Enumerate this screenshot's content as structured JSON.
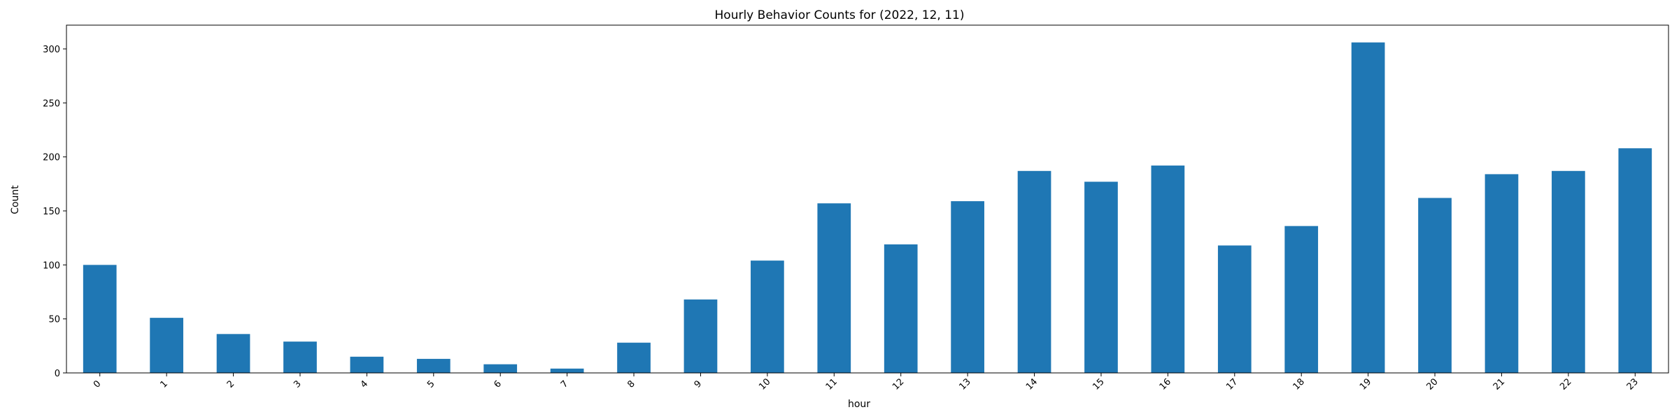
{
  "chart_data": {
    "type": "bar",
    "title": "Hourly Behavior Counts for (2022, 12, 11)",
    "xlabel": "hour",
    "ylabel": "Count",
    "categories": [
      "0",
      "1",
      "2",
      "3",
      "4",
      "5",
      "6",
      "7",
      "8",
      "9",
      "10",
      "11",
      "12",
      "13",
      "14",
      "15",
      "16",
      "17",
      "18",
      "19",
      "20",
      "21",
      "22",
      "23"
    ],
    "values": [
      100,
      51,
      36,
      29,
      15,
      13,
      8,
      4,
      28,
      68,
      104,
      157,
      119,
      159,
      187,
      177,
      192,
      118,
      136,
      306,
      162,
      184,
      187,
      208
    ],
    "ylim": [
      0,
      322
    ],
    "yticks": [
      0,
      50,
      100,
      150,
      200,
      250,
      300
    ],
    "grid": false,
    "legend": "none",
    "bar_color": "#1f77b4",
    "xtick_rotation": "45"
  }
}
